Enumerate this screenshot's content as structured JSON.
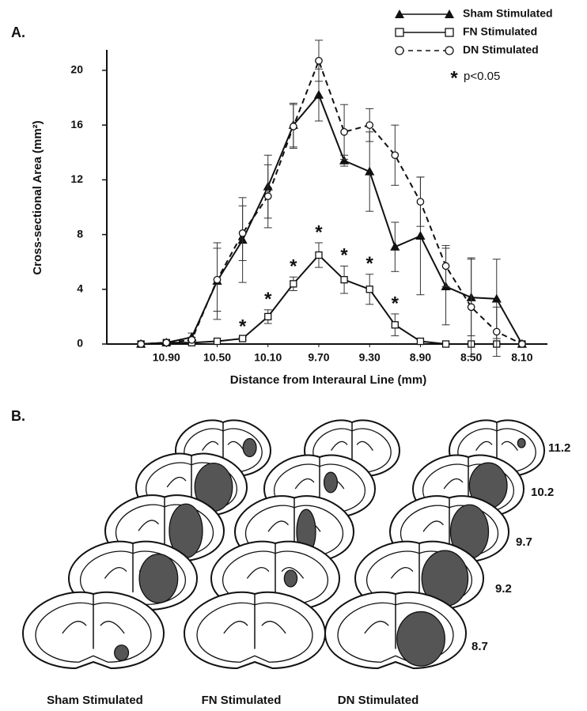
{
  "chart_data": {
    "type": "line",
    "panel_label": "A.",
    "x_label": "Distance from Interaural Line (mm)",
    "y_label": "Cross-sectional Area (mm²)",
    "x": [
      11.1,
      10.9,
      10.7,
      10.5,
      10.3,
      10.1,
      9.9,
      9.7,
      9.5,
      9.3,
      9.1,
      8.9,
      8.7,
      8.5,
      8.3,
      8.1
    ],
    "xlim": [
      11.4,
      7.9
    ],
    "xticks": [
      {
        "value": 10.9,
        "label": "10.90"
      },
      {
        "value": 10.5,
        "label": "10.50"
      },
      {
        "value": 10.1,
        "label": "10.10"
      },
      {
        "value": 9.7,
        "label": "9.70"
      },
      {
        "value": 9.3,
        "label": "9.30"
      },
      {
        "value": 8.9,
        "label": "8.90"
      },
      {
        "value": 8.5,
        "label": "8.50"
      },
      {
        "value": 8.1,
        "label": "8.10"
      }
    ],
    "ylim": [
      0,
      21.5
    ],
    "yticks": [
      0,
      4,
      8,
      12,
      16,
      20
    ],
    "significance_marker": "*",
    "significance_label": "p<0.05",
    "series": [
      {
        "name": "Sham Stimulated",
        "color": "#111111",
        "marker": "triangle",
        "dash": false,
        "values": [
          0,
          0.1,
          0.5,
          4.6,
          7.6,
          11.5,
          16.0,
          18.2,
          13.4,
          12.6,
          7.1,
          7.9,
          4.2,
          3.4,
          3.3,
          0
        ],
        "errors": [
          0,
          0,
          0.3,
          2.8,
          3.1,
          2.3,
          1.6,
          1.9,
          0.4,
          2.9,
          1.8,
          4.3,
          2.8,
          2.8,
          2.9,
          0
        ]
      },
      {
        "name": "FN Stimulated",
        "color": "#111111",
        "marker": "square",
        "dash": false,
        "values": [
          0,
          0.1,
          0.1,
          0.2,
          0.4,
          2.0,
          4.4,
          6.5,
          4.7,
          4.0,
          1.4,
          0.2,
          0,
          0,
          0,
          0
        ],
        "errors": [
          0,
          0,
          0,
          0,
          0.1,
          0.5,
          0.5,
          0.9,
          1.0,
          1.1,
          0.8,
          0,
          0,
          0,
          0,
          0
        ],
        "significant": [
          false,
          false,
          false,
          false,
          true,
          true,
          true,
          true,
          true,
          true,
          true,
          false,
          false,
          false,
          false,
          false
        ]
      },
      {
        "name": "DN Stimulated",
        "color": "#111111",
        "marker": "circle",
        "dash": true,
        "values": [
          0,
          0.1,
          0.3,
          4.7,
          8.1,
          10.8,
          15.9,
          20.7,
          15.5,
          16.0,
          13.8,
          10.4,
          5.7,
          2.7,
          0.9,
          0
        ],
        "errors": [
          0,
          0,
          0.2,
          2.3,
          2.0,
          2.3,
          1.6,
          1.5,
          2.0,
          1.2,
          2.2,
          1.8,
          1.5,
          3.6,
          1.8,
          0
        ]
      }
    ]
  },
  "panel_b": {
    "panel_label": "B.",
    "levels": [
      "11.2",
      "10.2",
      "9.7",
      "9.2",
      "8.7"
    ],
    "columns": [
      "Sham Stimulated",
      "FN Stimulated",
      "DN Stimulated"
    ]
  }
}
